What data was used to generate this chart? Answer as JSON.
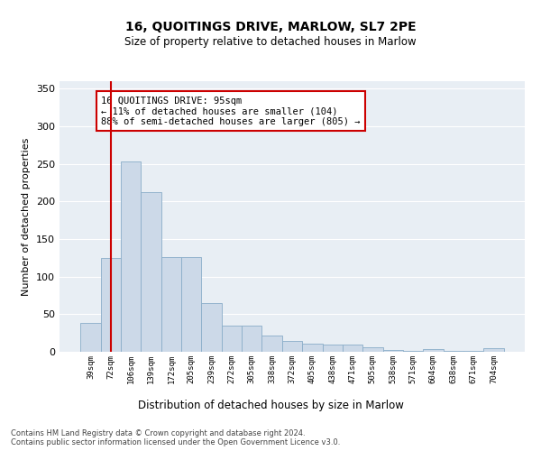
{
  "title": "16, QUOITINGS DRIVE, MARLOW, SL7 2PE",
  "subtitle": "Size of property relative to detached houses in Marlow",
  "xlabel": "Distribution of detached houses by size in Marlow",
  "ylabel": "Number of detached properties",
  "categories": [
    "39sqm",
    "72sqm",
    "106sqm",
    "139sqm",
    "172sqm",
    "205sqm",
    "239sqm",
    "272sqm",
    "305sqm",
    "338sqm",
    "372sqm",
    "405sqm",
    "438sqm",
    "471sqm",
    "505sqm",
    "538sqm",
    "571sqm",
    "604sqm",
    "638sqm",
    "671sqm",
    "704sqm"
  ],
  "values": [
    38,
    125,
    253,
    212,
    126,
    126,
    65,
    35,
    35,
    22,
    15,
    11,
    10,
    10,
    6,
    3,
    1,
    4,
    1,
    1,
    5
  ],
  "bar_color": "#ccd9e8",
  "bar_edge_color": "#8aadc8",
  "vline_x": 1.0,
  "vline_color": "#cc0000",
  "annotation_text": "16 QUOITINGS DRIVE: 95sqm\n← 11% of detached houses are smaller (104)\n88% of semi-detached houses are larger (805) →",
  "annotation_box_color": "#ffffff",
  "annotation_box_edge": "#cc0000",
  "ylim": [
    0,
    360
  ],
  "yticks": [
    0,
    50,
    100,
    150,
    200,
    250,
    300,
    350
  ],
  "background_color": "#e8eef4",
  "grid_color": "#ffffff",
  "footer_line1": "Contains HM Land Registry data © Crown copyright and database right 2024.",
  "footer_line2": "Contains public sector information licensed under the Open Government Licence v3.0."
}
